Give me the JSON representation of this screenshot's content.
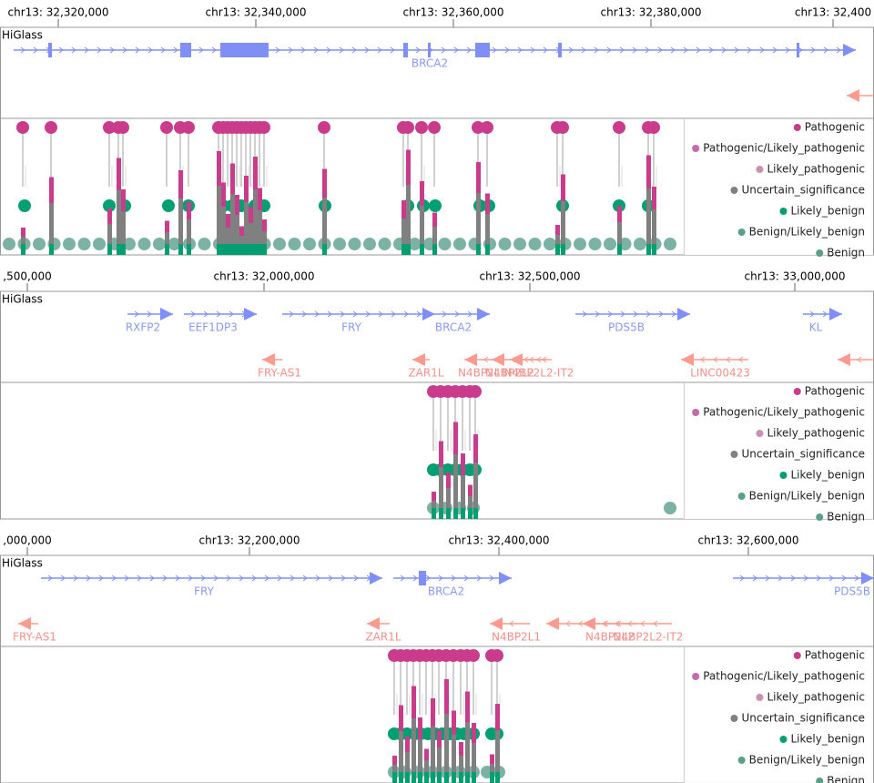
{
  "legend": [
    "Pathogenic",
    "Pathogenic/Likely_pathogenic",
    "Likely_pathogenic",
    "Uncertain_significance",
    "Likely_benign",
    "Benign/Likely_benign",
    "Benign"
  ],
  "panels": [
    {
      "app_label": "HiGlass",
      "ticks": [
        "chr13: 32,320,000",
        "chr13: 32,340,000",
        "chr13: 32,360,000",
        "chr13: 32,380,000",
        "chr13: 32,400"
      ],
      "genes_forward": [
        "BRCA2"
      ],
      "genes_reverse": []
    },
    {
      "app_label": "HiGlass",
      "ticks": [
        ",500,000",
        "chr13: 32,000,000",
        "chr13: 32,500,000",
        "chr13: 33,000,000"
      ],
      "genes_forward": [
        "RXFP2",
        "EEF1DP3",
        "FRY",
        "BRCA2",
        "PDS5B",
        "KL"
      ],
      "genes_reverse": [
        "FRY-AS1",
        "ZAR1L",
        "N4BP2L1",
        "N4BP2L2",
        "N4BP2L2-IT2",
        "LINC00423"
      ]
    },
    {
      "app_label": "HiGlass",
      "ticks": [
        ",000,000",
        "chr13: 32,200,000",
        "chr13: 32,400,000",
        "chr13: 32,600,000"
      ],
      "genes_forward": [
        "FRY",
        "BRCA2",
        "PDS5B"
      ],
      "genes_reverse": [
        "FRY-AS1",
        "ZAR1L",
        "N4BP2L1",
        "N4BP2L2",
        "N4BP2L2-IT2"
      ]
    }
  ]
}
